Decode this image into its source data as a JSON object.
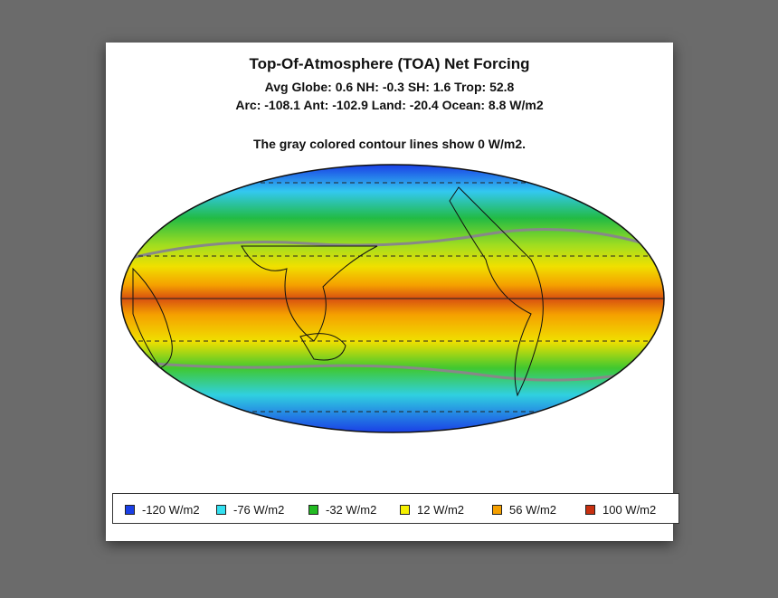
{
  "header": {
    "title": "Top-Of-Atmosphere (TOA) Net Forcing",
    "stats_line1": "Avg Globe: 0.6  NH: -0.3  SH: 1.6  Trop: 52.8",
    "stats_line2": "Arc: -108.1  Ant: -102.9  Land: -20.4 Ocean: 8.8 W/m2",
    "note": "The gray colored contour lines show 0 W/m2."
  },
  "legend": {
    "items": [
      {
        "label": "-120 W/m2",
        "color": "#1a3fe6"
      },
      {
        "label": "-76 W/m2",
        "color": "#33e0f0"
      },
      {
        "label": "-32 W/m2",
        "color": "#22bb22"
      },
      {
        "label": "12 W/m2",
        "color": "#f5f000"
      },
      {
        "label": "56 W/m2",
        "color": "#f5a000"
      },
      {
        "label": "100 W/m2",
        "color": "#c83010"
      }
    ]
  }
}
